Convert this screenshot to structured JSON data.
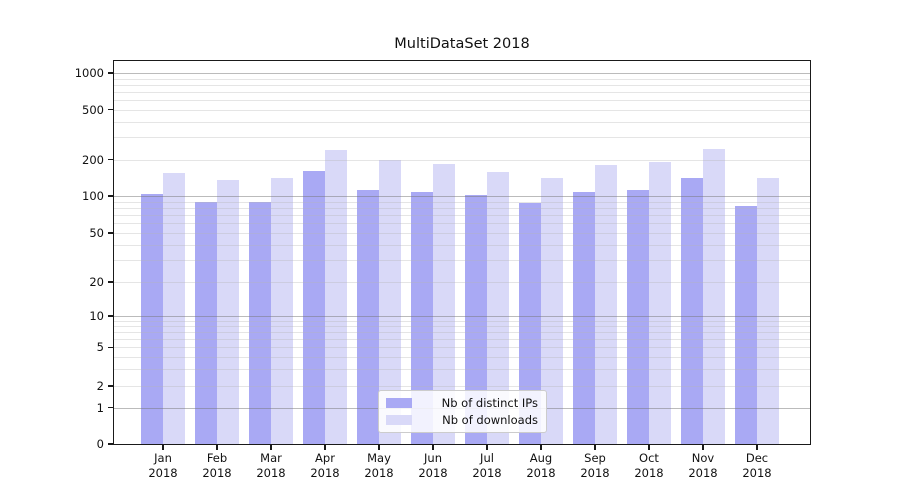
{
  "title": "MultiDataSet 2018",
  "chart_data": {
    "type": "bar",
    "title": "MultiDataSet 2018",
    "categories": [
      "Jan 2018",
      "Feb 2018",
      "Mar 2018",
      "Apr 2018",
      "May 2018",
      "Jun 2018",
      "Jul 2018",
      "Aug 2018",
      "Sep 2018",
      "Oct 2018",
      "Nov 2018",
      "Dec 2018"
    ],
    "x_ticks": [
      {
        "line1": "Jan",
        "line2": "2018"
      },
      {
        "line1": "Feb",
        "line2": "2018"
      },
      {
        "line1": "Mar",
        "line2": "2018"
      },
      {
        "line1": "Apr",
        "line2": "2018"
      },
      {
        "line1": "May",
        "line2": "2018"
      },
      {
        "line1": "Jun",
        "line2": "2018"
      },
      {
        "line1": "Jul",
        "line2": "2018"
      },
      {
        "line1": "Aug",
        "line2": "2018"
      },
      {
        "line1": "Sep",
        "line2": "2018"
      },
      {
        "line1": "Oct",
        "line2": "2018"
      },
      {
        "line1": "Nov",
        "line2": "2018"
      },
      {
        "line1": "Dec",
        "line2": "2018"
      }
    ],
    "series": [
      {
        "name": "Nb of distinct IPs",
        "color": "#a9a9f4",
        "values": [
          103,
          90,
          89,
          162,
          112,
          107,
          102,
          88,
          107,
          112,
          142,
          83
        ]
      },
      {
        "name": "Nb of downloads",
        "color": "#d9d9f8",
        "values": [
          154,
          135,
          142,
          238,
          200,
          184,
          157,
          140,
          181,
          191,
          244,
          141
        ]
      }
    ],
    "y_ticks": [
      0,
      1,
      2,
      5,
      10,
      20,
      50,
      100,
      200,
      500,
      1000
    ],
    "yscale": "symlog",
    "ylim": [
      0,
      1200
    ],
    "xlabel": "",
    "ylabel": "",
    "grid": "both",
    "legend_position": "lower center"
  }
}
